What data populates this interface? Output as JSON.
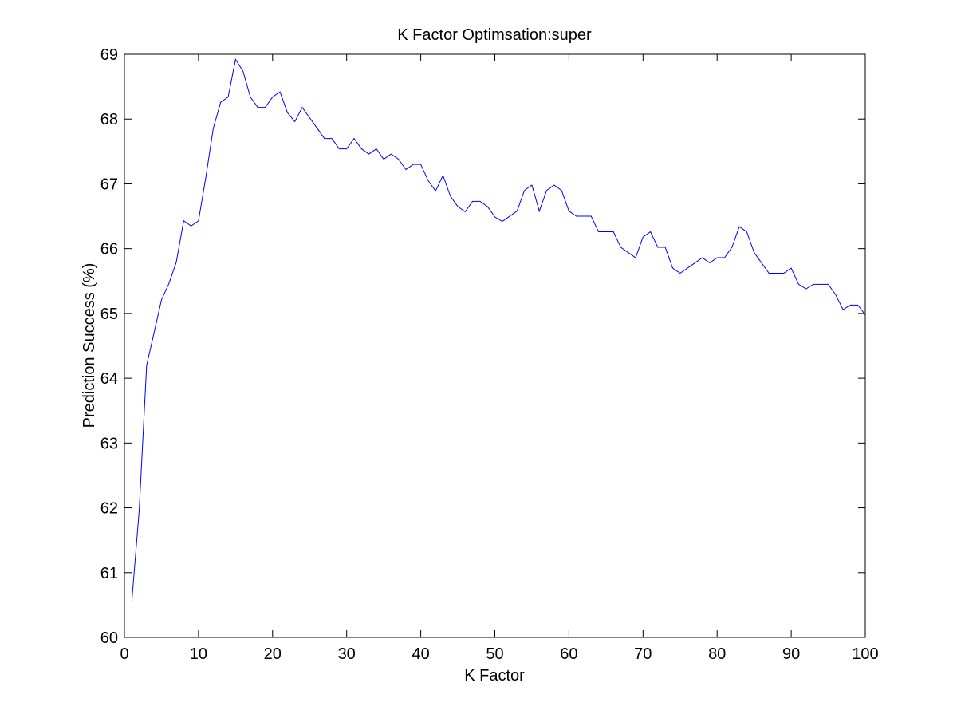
{
  "chart_data": {
    "type": "line",
    "title": "K Factor Optimsation:super",
    "xlabel": "K Factor",
    "ylabel": "Prediction Success (%)",
    "xlim": [
      0,
      100
    ],
    "ylim": [
      60,
      69
    ],
    "xticks": [
      0,
      10,
      20,
      30,
      40,
      50,
      60,
      70,
      80,
      90,
      100
    ],
    "yticks": [
      60,
      61,
      62,
      63,
      64,
      65,
      66,
      67,
      68,
      69
    ],
    "grid": false,
    "line_color": "#0000ff",
    "series": [
      {
        "x": [
          1,
          2,
          3,
          4,
          5,
          6,
          7,
          8,
          9,
          10,
          11,
          12,
          13,
          14,
          15,
          16,
          17,
          18,
          19,
          20,
          21,
          22,
          23,
          24,
          25,
          26,
          27,
          28,
          29,
          30,
          31,
          32,
          33,
          34,
          35,
          36,
          37,
          38,
          39,
          40,
          41,
          42,
          43,
          44,
          45,
          46,
          47,
          48,
          49,
          50,
          51,
          52,
          53,
          54,
          55,
          56,
          57,
          58,
          59,
          60,
          61,
          62,
          63,
          64,
          65,
          66,
          67,
          68,
          69,
          70,
          71,
          72,
          73,
          74,
          75,
          76,
          77,
          78,
          79,
          80,
          81,
          82,
          83,
          84,
          85,
          86,
          87,
          88,
          89,
          90,
          91,
          92,
          93,
          94,
          95,
          96,
          97,
          98,
          99,
          100
        ],
        "values": [
          60.56,
          61.97,
          64.2,
          64.7,
          65.21,
          65.46,
          65.79,
          66.43,
          66.35,
          66.43,
          67.11,
          67.86,
          68.26,
          68.34,
          68.92,
          68.74,
          68.34,
          68.18,
          68.18,
          68.34,
          68.42,
          68.1,
          67.96,
          68.18,
          68.02,
          67.86,
          67.7,
          67.7,
          67.54,
          67.54,
          67.7,
          67.54,
          67.46,
          67.54,
          67.38,
          67.46,
          67.38,
          67.22,
          67.3,
          67.3,
          67.05,
          66.89,
          67.13,
          66.81,
          66.65,
          66.57,
          66.73,
          66.73,
          66.65,
          66.49,
          66.42,
          66.5,
          66.58,
          66.9,
          66.98,
          66.58,
          66.9,
          66.98,
          66.9,
          66.58,
          66.5,
          66.5,
          66.5,
          66.26,
          66.26,
          66.26,
          66.02,
          65.94,
          65.86,
          66.18,
          66.26,
          66.02,
          66.02,
          65.7,
          65.62,
          65.7,
          65.78,
          65.86,
          65.78,
          65.86,
          65.86,
          66.02,
          66.34,
          66.26,
          65.94,
          65.78,
          65.62,
          65.62,
          65.62,
          65.7,
          65.45,
          65.38,
          65.45,
          65.45,
          65.45,
          65.29,
          65.06,
          65.13,
          65.13,
          64.98
        ]
      }
    ]
  }
}
